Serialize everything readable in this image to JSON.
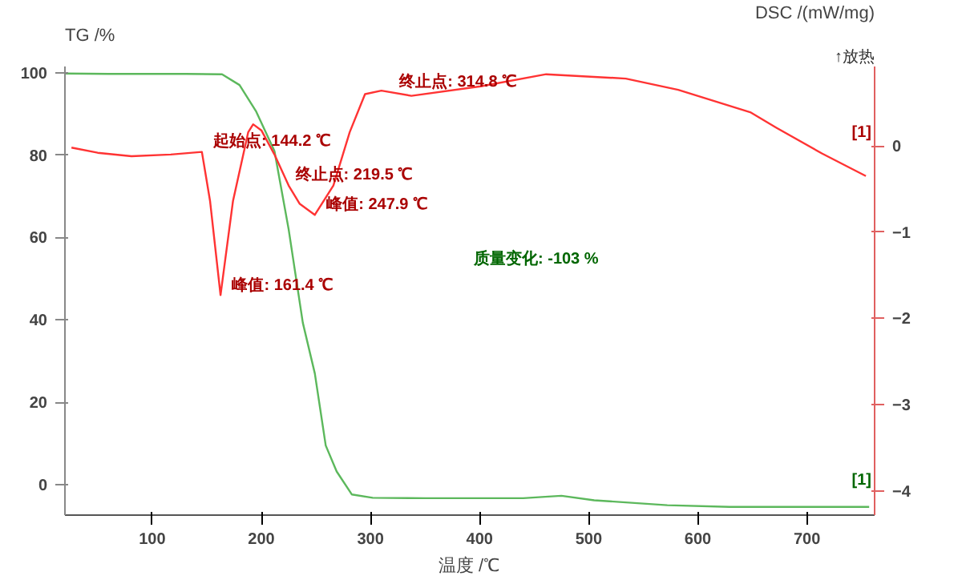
{
  "chart_data": {
    "type": "line",
    "xlabel": "温度 /℃",
    "ylabel": "TG /%",
    "y2label": "DSC /(mW/mg)",
    "xlim": [
      20,
      762
    ],
    "xticks": [
      100,
      200,
      300,
      400,
      500,
      600,
      700
    ],
    "ylim": [
      -7.4,
      101.5
    ],
    "yticks": [
      0,
      20,
      40,
      60,
      80,
      100
    ],
    "y2lim": [
      -4.28,
      0.92
    ],
    "y2ticks": [
      -4,
      -3,
      -2,
      -1,
      0
    ],
    "grid": false,
    "marker": "none",
    "line_style": "solid",
    "series": [
      {
        "color": "#5cb85c",
        "x": [
          20,
          60,
          100,
          131,
          164,
          180,
          195,
          212,
          225,
          238,
          249,
          259,
          269,
          283,
          302,
          350,
          400,
          440,
          463,
          475,
          505,
          572,
          629,
          700,
          757
        ],
        "values": [
          99.8,
          99.7,
          99.7,
          99.7,
          99.6,
          97,
          90.7,
          81,
          62,
          39.3,
          27,
          9.5,
          3.2,
          -2.4,
          -3.2,
          -3.3,
          -3.3,
          -3.3,
          -2.9,
          -2.7,
          -3.8,
          -5.0,
          -5.4,
          -5.4,
          -5.4
        ]
      },
      {
        "color": "#ff3333",
        "axis": "y2",
        "x": [
          26,
          50,
          81,
          117,
          145.5,
          153,
          162.6,
          174,
          188,
          192.5,
          200,
          212,
          225,
          235,
          249,
          266,
          281,
          295,
          310,
          337.5,
          401,
          461,
          534,
          582,
          648,
          672,
          714,
          754
        ],
        "values": [
          -0.02,
          -0.08,
          -0.12,
          -0.1,
          -0.07,
          -0.64,
          -1.73,
          -0.64,
          0.16,
          0.25,
          0.18,
          -0.1,
          -0.46,
          -0.67,
          -0.8,
          -0.46,
          0.16,
          0.6,
          0.64,
          0.58,
          0.69,
          0.83,
          0.78,
          0.65,
          0.39,
          0.21,
          -0.09,
          -0.35
        ]
      }
    ],
    "annotations": [
      "↑放热",
      {
        "text": "起始点: 144.2 ℃",
        "x": 144.2,
        "y": 81
      },
      {
        "text": "峰值: 161.4 ℃",
        "x": 161.4,
        "y": 46
      },
      {
        "text": "终止点: 219.5 ℃",
        "x": 219.5,
        "y": 73
      },
      {
        "text": "峰值: 247.9 ℃",
        "x": 247.9,
        "y": 65.7
      },
      {
        "text": "终止点: 314.8 ℃",
        "x": 314.8,
        "y": 95.5
      },
      "质量变化: -103 %",
      "[1]",
      "[1]"
    ]
  }
}
